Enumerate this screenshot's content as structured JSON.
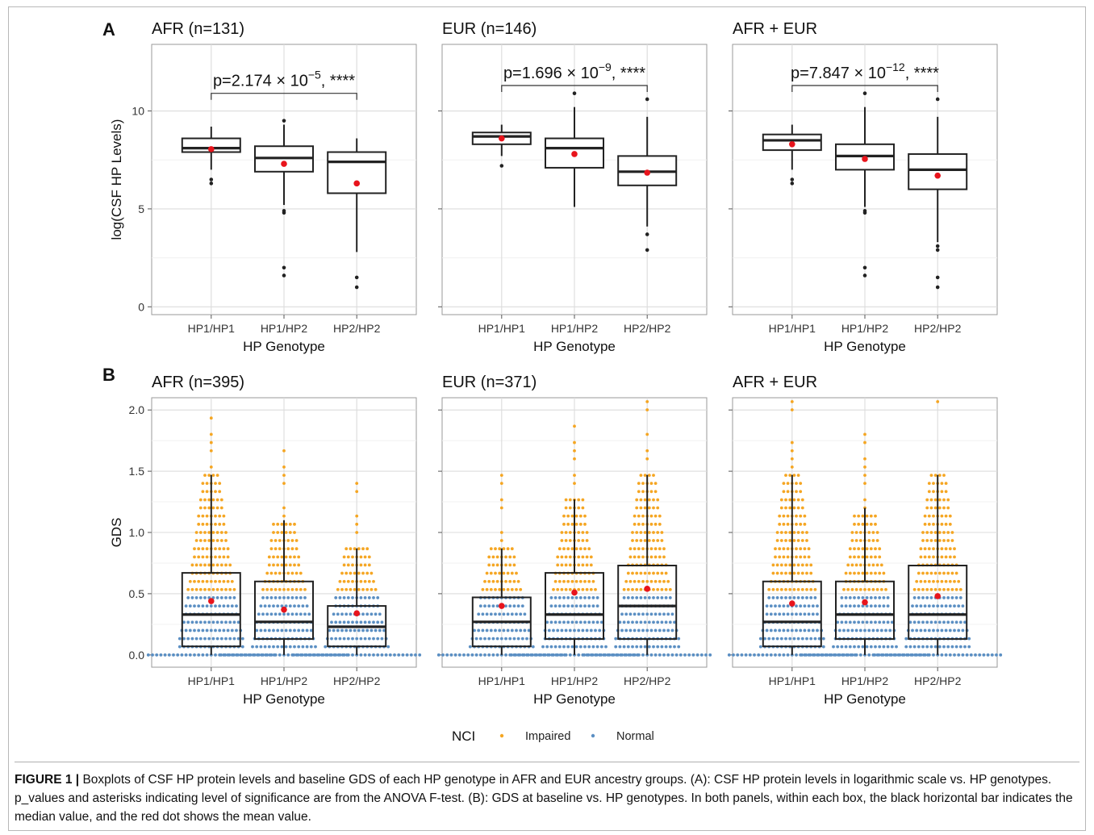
{
  "chart_data": [
    {
      "panel": "A",
      "type": "boxplot",
      "title": "AFR (n=131)",
      "ylabel": "log(CSF HP Levels)",
      "xlabel": "HP Genotype",
      "ylim": [
        -0.4,
        13.4
      ],
      "yticks": [
        0,
        5,
        10
      ],
      "grid": true,
      "categories": [
        "HP1/HP1",
        "HP1/HP2",
        "HP2/HP2"
      ],
      "boxes": [
        {
          "q1": 7.9,
          "median": 8.1,
          "q3": 8.6,
          "whisker_low": 7.0,
          "whisker_high": 9.2,
          "mean": 8.05,
          "outliers": [
            6.5,
            6.3
          ]
        },
        {
          "q1": 6.9,
          "median": 7.6,
          "q3": 8.2,
          "whisker_low": 5.2,
          "whisker_high": 9.3,
          "mean": 7.3,
          "outliers": [
            4.9,
            4.8,
            2.0,
            1.6,
            9.5
          ]
        },
        {
          "q1": 5.8,
          "median": 7.4,
          "q3": 7.9,
          "whisker_low": 2.8,
          "whisker_high": 8.6,
          "mean": 6.3,
          "outliers": [
            1.5,
            1.0
          ]
        }
      ],
      "annotation": {
        "mantissa": "p=2.174",
        "base": "10",
        "exponent": "−5",
        "stars": ", ****",
        "y": 10.9
      }
    },
    {
      "panel": "A",
      "type": "boxplot",
      "title": "EUR (n=146)",
      "ylabel": "",
      "xlabel": "HP Genotype",
      "ylim": [
        -0.4,
        13.4
      ],
      "yticks": [
        0,
        5,
        10
      ],
      "grid": true,
      "categories": [
        "HP1/HP1",
        "HP1/HP2",
        "HP2/HP2"
      ],
      "boxes": [
        {
          "q1": 8.3,
          "median": 8.7,
          "q3": 8.9,
          "whisker_low": 7.7,
          "whisker_high": 9.3,
          "mean": 8.6,
          "outliers": [
            7.2
          ]
        },
        {
          "q1": 7.1,
          "median": 8.1,
          "q3": 8.6,
          "whisker_low": 5.1,
          "whisker_high": 10.2,
          "mean": 7.8,
          "outliers": [
            10.9
          ]
        },
        {
          "q1": 6.2,
          "median": 6.9,
          "q3": 7.7,
          "whisker_low": 4.1,
          "whisker_high": 9.7,
          "mean": 6.85,
          "outliers": [
            10.6,
            3.7,
            2.9
          ]
        }
      ],
      "annotation": {
        "mantissa": "p=1.696",
        "base": "10",
        "exponent": "−9",
        "stars": ", ****",
        "y": 11.3
      }
    },
    {
      "panel": "A",
      "type": "boxplot",
      "title": "AFR + EUR",
      "ylabel": "",
      "xlabel": "HP Genotype",
      "ylim": [
        -0.4,
        13.4
      ],
      "yticks": [
        0,
        5,
        10
      ],
      "grid": true,
      "categories": [
        "HP1/HP1",
        "HP1/HP2",
        "HP2/HP2"
      ],
      "boxes": [
        {
          "q1": 8.0,
          "median": 8.5,
          "q3": 8.8,
          "whisker_low": 7.0,
          "whisker_high": 9.3,
          "mean": 8.3,
          "outliers": [
            6.5,
            6.3
          ]
        },
        {
          "q1": 7.0,
          "median": 7.7,
          "q3": 8.3,
          "whisker_low": 5.1,
          "whisker_high": 10.2,
          "mean": 7.55,
          "outliers": [
            4.9,
            4.8,
            2.0,
            1.6,
            10.9
          ]
        },
        {
          "q1": 6.0,
          "median": 7.0,
          "q3": 7.8,
          "whisker_low": 3.3,
          "whisker_high": 9.7,
          "mean": 6.7,
          "outliers": [
            10.6,
            3.1,
            2.9,
            1.5,
            1.0
          ]
        }
      ],
      "annotation": {
        "mantissa": "p=7.847",
        "base": "10",
        "exponent": "−12",
        "stars": ", ****",
        "y": 11.3
      }
    },
    {
      "panel": "B",
      "type": "boxplot",
      "title": "AFR (n=395)",
      "ylabel": "GDS",
      "xlabel": "HP Genotype",
      "ylim": [
        -0.1,
        2.1
      ],
      "yticks": [
        0.0,
        0.5,
        1.0,
        1.5,
        2.0
      ],
      "grid": true,
      "categories": [
        "HP1/HP1",
        "HP1/HP2",
        "HP2/HP2"
      ],
      "boxes": [
        {
          "q1": 0.07,
          "median": 0.33,
          "q3": 0.67,
          "whisker_low": 0.0,
          "whisker_high": 1.47,
          "mean": 0.44
        },
        {
          "q1": 0.13,
          "median": 0.27,
          "q3": 0.6,
          "whisker_low": 0.0,
          "whisker_high": 1.1,
          "mean": 0.37
        },
        {
          "q1": 0.07,
          "median": 0.23,
          "q3": 0.4,
          "whisker_low": 0.0,
          "whisker_high": 0.87,
          "mean": 0.34
        }
      ]
    },
    {
      "panel": "B",
      "type": "boxplot",
      "title": "EUR (n=371)",
      "ylabel": "",
      "xlabel": "HP Genotype",
      "ylim": [
        -0.1,
        2.1
      ],
      "yticks": [
        0.0,
        0.5,
        1.0,
        1.5,
        2.0
      ],
      "grid": true,
      "categories": [
        "HP1/HP1",
        "HP1/HP2",
        "HP2/HP2"
      ],
      "boxes": [
        {
          "q1": 0.07,
          "median": 0.27,
          "q3": 0.47,
          "whisker_low": 0.0,
          "whisker_high": 0.87,
          "mean": 0.4
        },
        {
          "q1": 0.13,
          "median": 0.33,
          "q3": 0.67,
          "whisker_low": 0.0,
          "whisker_high": 1.27,
          "mean": 0.51
        },
        {
          "q1": 0.13,
          "median": 0.4,
          "q3": 0.73,
          "whisker_low": 0.0,
          "whisker_high": 1.47,
          "mean": 0.54
        }
      ]
    },
    {
      "panel": "B",
      "type": "boxplot",
      "title": "AFR + EUR",
      "ylabel": "",
      "xlabel": "HP Genotype",
      "ylim": [
        -0.1,
        2.1
      ],
      "yticks": [
        0.0,
        0.5,
        1.0,
        1.5,
        2.0
      ],
      "grid": true,
      "categories": [
        "HP1/HP1",
        "HP1/HP2",
        "HP2/HP2"
      ],
      "boxes": [
        {
          "q1": 0.07,
          "median": 0.27,
          "q3": 0.6,
          "whisker_low": 0.0,
          "whisker_high": 1.47,
          "mean": 0.42
        },
        {
          "q1": 0.13,
          "median": 0.33,
          "q3": 0.6,
          "whisker_low": 0.0,
          "whisker_high": 1.2,
          "mean": 0.43
        },
        {
          "q1": 0.13,
          "median": 0.33,
          "q3": 0.73,
          "whisker_low": 0.0,
          "whisker_high": 1.47,
          "mean": 0.48
        }
      ]
    }
  ],
  "panel_labels": [
    "A",
    "B"
  ],
  "legend": {
    "title": "NCI",
    "placement": "bottom",
    "entries": [
      {
        "label": "Impaired",
        "color": "#f5a623"
      },
      {
        "label": "Normal",
        "color": "#5b8fc3"
      }
    ]
  },
  "colors": {
    "mean_dot": "#e8141c",
    "box": "#222222",
    "impaired": "#f5a623",
    "normal": "#5b8fc3"
  },
  "caption": {
    "label": "FIGURE 1 |",
    "text": "Boxplots of CSF HP protein levels and baseline GDS of each HP genotype in AFR and EUR ancestry groups. (A): CSF HP protein levels in logarithmic scale vs. HP genotypes. p_values and asterisks indicating level of significance are from the ANOVA F-test. (B): GDS at baseline vs. HP genotypes. In both panels, within each box, the black horizontal bar indicates the median value, and the red dot shows the mean value."
  }
}
